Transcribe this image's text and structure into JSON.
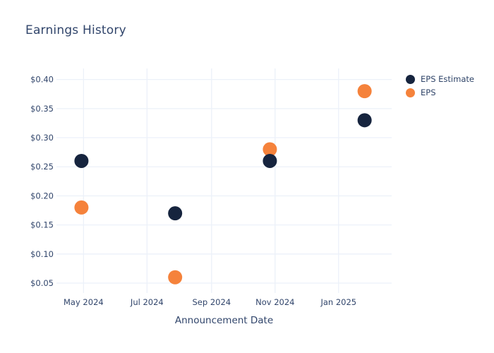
{
  "title": "Earnings History",
  "axis_title": "Announcement Date",
  "colors": {
    "background": "#ffffff",
    "grid": "#ECF1F9",
    "text": "#31456B",
    "eps_estimate": "#16243E",
    "eps": "#F5823B"
  },
  "legend": {
    "position": "top-right-outside",
    "items": [
      {
        "label": "EPS Estimate",
        "color": "#16243E"
      },
      {
        "label": "EPS",
        "color": "#F5823B"
      }
    ]
  },
  "chart_data": {
    "type": "scatter",
    "title": "Earnings History",
    "xlabel": "Announcement Date",
    "ylabel": "",
    "grid": true,
    "marker_diameter_px": 20,
    "x_tick_labels": [
      "May 2024",
      "Jul 2024",
      "Sep 2024",
      "Nov 2024",
      "Jan 2025"
    ],
    "x_tick_days": [
      0,
      61,
      123,
      184,
      245
    ],
    "xlim_days": [
      -26,
      296
    ],
    "y_tick_labels": [
      "$0.05",
      "$0.10",
      "$0.15",
      "$0.20",
      "$0.25",
      "$0.30",
      "$0.35",
      "$0.40"
    ],
    "y_ticks": [
      0.05,
      0.1,
      0.15,
      0.2,
      0.25,
      0.3,
      0.35,
      0.4
    ],
    "ylim": [
      0.033,
      0.419
    ],
    "series": [
      {
        "name": "EPS Estimate",
        "color": "#16243E",
        "x_days": [
          -2,
          88,
          179,
          270
        ],
        "values": [
          0.26,
          0.17,
          0.26,
          0.33
        ]
      },
      {
        "name": "EPS",
        "color": "#F5823B",
        "x_days": [
          -2,
          88,
          179,
          270
        ],
        "values": [
          0.18,
          0.06,
          0.28,
          0.38
        ]
      }
    ]
  }
}
